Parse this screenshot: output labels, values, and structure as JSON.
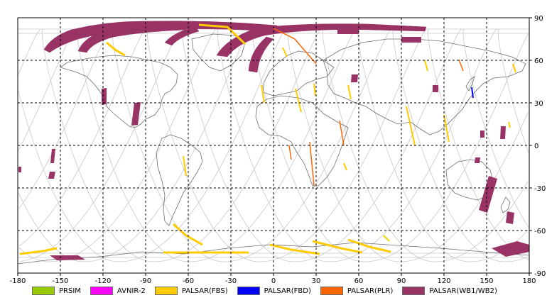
{
  "map": {
    "projection": "equirectangular",
    "lon_range": [
      -180,
      180
    ],
    "lat_range": [
      -90,
      90
    ],
    "x_ticks": [
      "-180",
      "-150",
      "-120",
      "-90",
      "-60",
      "-30",
      "0",
      "30",
      "60",
      "90",
      "120",
      "150",
      "180"
    ],
    "y_ticks": [
      "90",
      "60",
      "30",
      "0",
      "-30",
      "-60",
      "-90"
    ],
    "grid": "dashed every 30 degrees",
    "colors": {
      "background": "#ffffff",
      "coastline": "#6e6e6e",
      "orbit": "#c8c8c8",
      "grid": "#000000"
    }
  },
  "legend": [
    {
      "label": "PRSIM",
      "color": "#99cc00"
    },
    {
      "label": "AVNIR-2",
      "color": "#ff00ff"
    },
    {
      "label": "PALSAR(FBS)",
      "color": "#ffcc00"
    },
    {
      "label": "PALSAR(FBD)",
      "color": "#0000ff"
    },
    {
      "label": "PALSAR(PLR)",
      "color": "#ff6600"
    },
    {
      "label": "PALSAR(WB1/WB2)",
      "color": "#993366"
    }
  ],
  "observations": [
    {
      "mode": "PALSAR(WB1/WB2)",
      "lon": [
        -157,
        35
      ],
      "lat": [
        66,
        83
      ]
    },
    {
      "mode": "PALSAR(WB1/WB2)",
      "lon": [
        -135,
        30
      ],
      "lat": [
        67,
        83
      ]
    },
    {
      "mode": "PALSAR(WB1/WB2)",
      "lon": [
        -108,
        80
      ],
      "lat": [
        70,
        84
      ]
    },
    {
      "mode": "PALSAR(WB1/WB2)",
      "lon": [
        -90,
        110
      ],
      "lat": [
        52,
        84
      ]
    },
    {
      "mode": "PALSAR(WB1/WB2)",
      "lon": [
        -62,
        12
      ],
      "lat": [
        62,
        83
      ]
    },
    {
      "mode": "PALSAR(WB1/WB2)",
      "lon": [
        -30,
        10
      ],
      "lat": [
        50,
        82
      ]
    },
    {
      "mode": "PALSAR(WB1/WB2)",
      "lon": [
        -200,
        0
      ],
      "lat": [
        -70,
        82
      ]
    },
    {
      "mode": "PALSAR(WB1/WB2)",
      "lon": [
        15,
        70
      ],
      "lat": [
        75,
        82
      ]
    },
    {
      "mode": "PALSAR(WB1/WB2)",
      "lon": [
        70,
        84
      ],
      "lat": [
        73,
        76
      ]
    },
    {
      "mode": "PALSAR(WB1/WB2)",
      "lon": [
        -137,
        -131
      ],
      "lat": [
        20,
        28
      ]
    },
    {
      "mode": "PALSAR(WB1/WB2)",
      "lon": [
        -116,
        -107
      ],
      "lat": [
        19,
        28
      ]
    },
    {
      "mode": "PALSAR(WB1/WB2)",
      "lon": [
        -152,
        -150
      ],
      "lat": [
        -17,
        -13
      ]
    },
    {
      "mode": "PALSAR(WB1/WB2)",
      "lon": [
        -144,
        -134
      ],
      "lat": [
        -17,
        -12
      ]
    },
    {
      "mode": "PALSAR(WB1/WB2)",
      "lon": [
        -178,
        -175
      ],
      "lat": [
        -12,
        -10
      ]
    },
    {
      "mode": "PALSAR(WB1/WB2)",
      "lon": [
        -152,
        -143
      ],
      "lat": [
        -78,
        -72
      ]
    },
    {
      "mode": "PALSAR(WB1/WB2)",
      "lon": [
        131,
        140
      ],
      "lat": [
        24,
        32
      ]
    },
    {
      "mode": "PALSAR(WB1/WB2)",
      "lon": [
        140,
        165
      ],
      "lat": [
        -20,
        3
      ]
    },
    {
      "mode": "PALSAR(WB1/WB2)",
      "lon": [
        120,
        135
      ],
      "lat": [
        34,
        44
      ]
    },
    {
      "mode": "PALSAR(WB1/WB2)",
      "lon": [
        160,
        170
      ],
      "lat": [
        -51,
        -45
      ]
    },
    {
      "mode": "PALSAR(WB1/WB2)",
      "lon": [
        176,
        180
      ],
      "lat": [
        -75,
        -70
      ]
    },
    {
      "mode": "PALSAR(WB1/WB2)",
      "lon": [
        148,
        176
      ],
      "lat": [
        -85,
        -72
      ]
    },
    {
      "mode": "PALSAR(FBS)",
      "lon": [
        -170,
        -130
      ],
      "lat": [
        -77,
        -70
      ]
    },
    {
      "mode": "PALSAR(FBS)",
      "lon": [
        -125,
        -95
      ],
      "lat": [
        -70,
        -65
      ]
    },
    {
      "mode": "PALSAR(FBS)",
      "lon": [
        -75,
        -45
      ],
      "lat": [
        -60,
        -50
      ]
    },
    {
      "mode": "PALSAR(FBS)",
      "lon": [
        -10,
        75
      ],
      "lat": [
        -78,
        -72
      ]
    },
    {
      "mode": "PALSAR(FBS)",
      "lon": [
        -5,
        10
      ],
      "lat": [
        15,
        60
      ]
    },
    {
      "mode": "PALSAR(FBS)",
      "lon": [
        28,
        50
      ],
      "lat": [
        35,
        65
      ]
    },
    {
      "mode": "PALSAR(FBS)",
      "lon": [
        55,
        90
      ],
      "lat": [
        10,
        55
      ]
    },
    {
      "mode": "PALSAR(FBS)",
      "lon": [
        85,
        110
      ],
      "lat": [
        10,
        45
      ]
    },
    {
      "mode": "PALSAR(FBS)",
      "lon": [
        110,
        150
      ],
      "lat": [
        10,
        70
      ]
    },
    {
      "mode": "PALSAR(PLR)",
      "lon": [
        0,
        35
      ],
      "lat": [
        70,
        80
      ]
    },
    {
      "mode": "PALSAR(PLR)",
      "lon": [
        40,
        55
      ],
      "lat": [
        0,
        30
      ]
    },
    {
      "mode": "PALSAR(FBD)",
      "lon": [
        140,
        143
      ],
      "lat": [
        35,
        42
      ]
    }
  ]
}
